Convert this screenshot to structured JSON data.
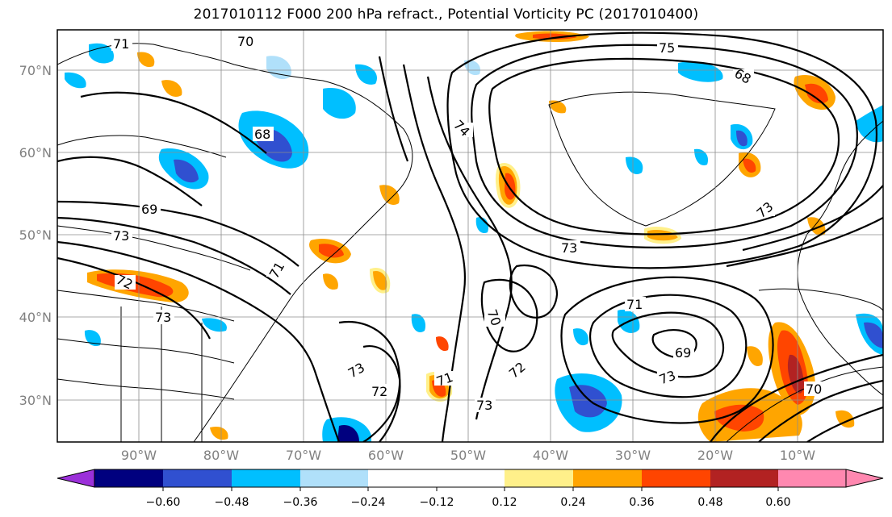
{
  "title": "2017010112 F000 200 hPa refract., Potential Vorticity PC (2017010400)",
  "lat_labels": [
    "70°N",
    "60°N",
    "50°N",
    "40°N",
    "30°N"
  ],
  "lon_labels": [
    "90°W",
    "80°W",
    "70°W",
    "60°W",
    "50°W",
    "40°W",
    "30°W",
    "20°W",
    "10°W"
  ],
  "colorbar": {
    "colors": [
      "#9b30d9",
      "#00007f",
      "#3050d0",
      "#00bfff",
      "#b0e0fa",
      "#ffffff",
      "#fff08a",
      "#ffa500",
      "#ff4500",
      "#b22222",
      "#ff88b0"
    ],
    "labels": [
      "−0.60",
      "−0.48",
      "−0.36",
      "−0.24",
      "−0.12",
      "0.12",
      "0.24",
      "0.36",
      "0.48",
      "0.60"
    ]
  },
  "contour_labels": [
    "71",
    "70",
    "74",
    "75",
    "68",
    "68",
    "69",
    "73",
    "72",
    "73",
    "71",
    "73",
    "73",
    "70",
    "71",
    "69",
    "73",
    "72",
    "72",
    "73",
    "71",
    "73",
    "70"
  ]
}
